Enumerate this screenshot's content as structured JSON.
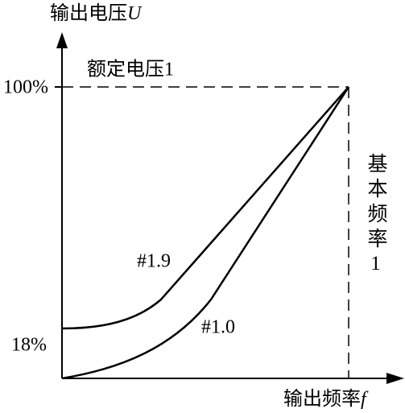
{
  "y_axis": {
    "title": "输出电压",
    "symbol": "U",
    "ticks": [
      "100%",
      "18%"
    ]
  },
  "x_axis": {
    "title": "输出频率",
    "symbol": "f"
  },
  "annotations": {
    "rated_voltage": "额定电压1",
    "base_frequency": "基本频率1"
  },
  "curves": [
    {
      "label": "#1.9"
    },
    {
      "label": "#1.0"
    }
  ]
}
